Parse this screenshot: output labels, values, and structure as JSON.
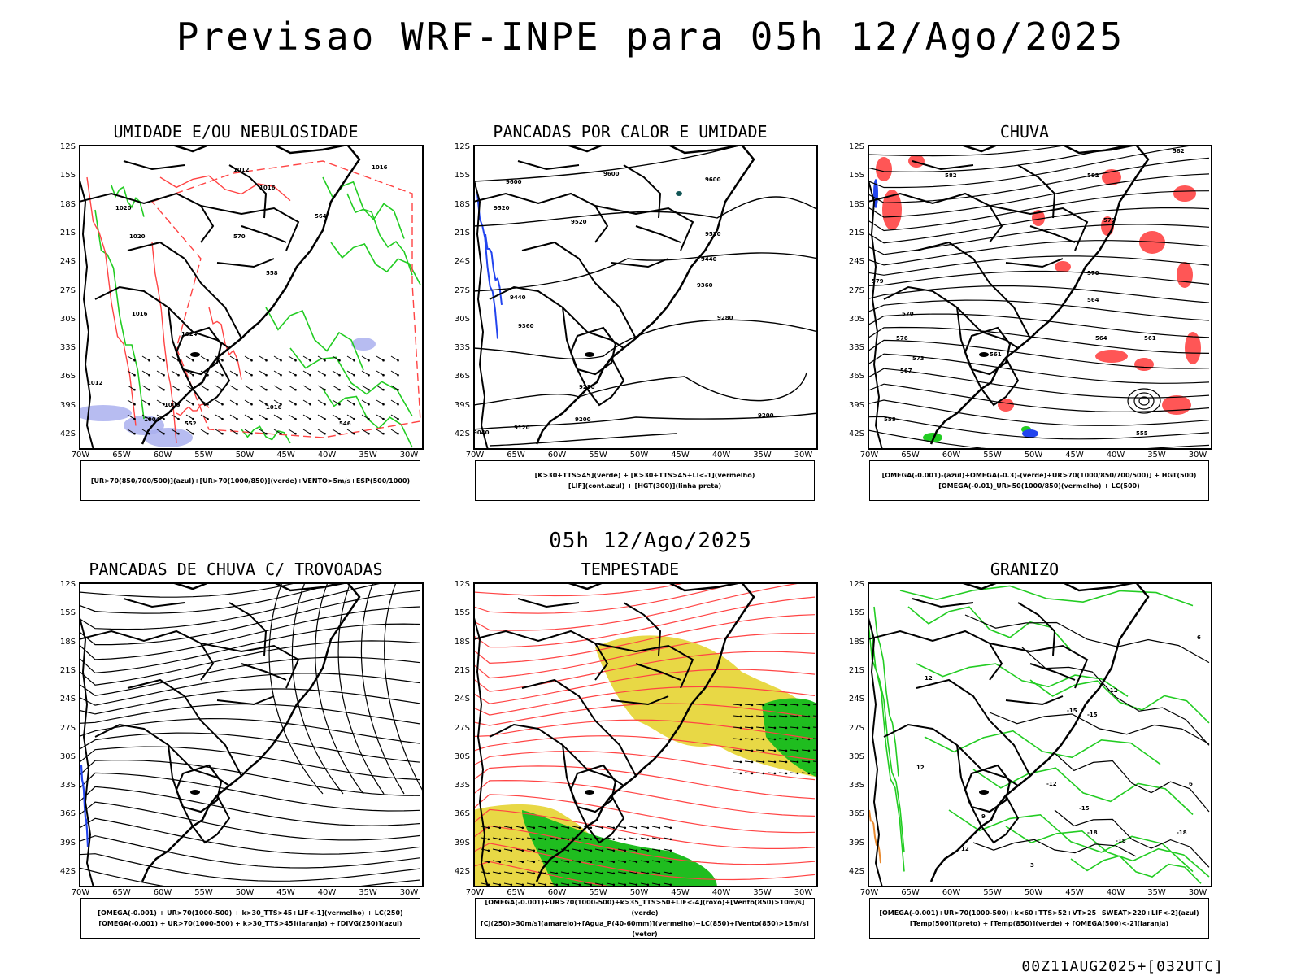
{
  "header": {
    "title": "Previsao WRF-INPE  para 05h 12/Ago/2025"
  },
  "subheader": {
    "date": "05h 12/Ago/2025"
  },
  "footer": {
    "run": "00Z11AUG2025+[032UTC]"
  },
  "axes": {
    "lat_labels": [
      "12S",
      "15S",
      "18S",
      "21S",
      "24S",
      "27S",
      "30S",
      "33S",
      "36S",
      "39S",
      "42S"
    ],
    "lon_labels": [
      "70W",
      "65W",
      "60W",
      "55W",
      "50W",
      "45W",
      "40W",
      "35W",
      "30W"
    ]
  },
  "colors": {
    "blue": "#2244ee",
    "green": "#22cc22",
    "red": "#ff4444",
    "yellow": "#e8d845",
    "orange": "#e88a30",
    "lavender": "#aab0ee"
  },
  "panels": [
    {
      "id": "umidade",
      "title": "UMIDADE E/OU NEBULOSIDADE",
      "legend_lines": [
        "[UR>70(850/700/500)](azul)+[UR>70(1000/850)](verde)+VENTO>5m/s+ESP(500/1000)"
      ],
      "contour_labels": [
        "1012",
        "1016",
        "1016",
        "1020",
        "1020",
        "1024",
        "1016",
        "1012",
        "1008",
        "1004",
        "1016",
        "570",
        "564",
        "558",
        "552",
        "546"
      ]
    },
    {
      "id": "pancadas_calor",
      "title": "PANCADAS POR CALOR E UMIDADE",
      "legend_lines": [
        "[K>30+TTS>45](verde) + [K>30+TTS>45+LI<-1](vermelho)",
        "[LIF](cont.azul) + [HGT(300)](linha preta)"
      ],
      "contour_labels": [
        "9600",
        "9600",
        "9600",
        "9520",
        "9520",
        "9520",
        "9440",
        "9440",
        "9360",
        "9360",
        "9280",
        "9280",
        "9200",
        "9200",
        "9120",
        "9040"
      ]
    },
    {
      "id": "chuva",
      "title": "CHUVA",
      "legend_lines": [
        "[OMEGA(-0.001)-(azul)+OMEGA(-0.3)-(verde)+UR>70(1000/850/700/500)] + HGT(500)",
        "[OMEGA(-0.01)_UR>50(1000/850)(vermelho) + LC(500)"
      ],
      "contour_labels": [
        "582",
        "582",
        "582",
        "579",
        "579",
        "576",
        "573",
        "570",
        "570",
        "567",
        "564",
        "564",
        "561",
        "561",
        "558",
        "555"
      ]
    },
    {
      "id": "trovoadas",
      "title": "PANCADAS DE CHUVA C/ TROVOADAS",
      "legend_lines": [
        "[OMEGA(-0.001) + UR>70(1000-500) + k>30_TTS>45+LIF<-1](vermelho) + LC(250)",
        "[OMEGA(-0.001) + UR>70(1000-500) + k>30_TTS>45](laranja) + [DIVG(250)](azul)"
      ],
      "contour_labels": []
    },
    {
      "id": "tempestade",
      "title": "TEMPESTADE",
      "legend_lines": [
        "[OMEGA(-0.001)+UR>70(1000-500)+k>35_TTS>50+LIF<-4](roxo)+[Vento(850)>10m/s](verde)",
        "[CJ(250)>30m/s](amarelo)+[Agua_P(40-60mm)](vermelho)+LC(850)+[Vento(850)>15m/s](vetor)"
      ],
      "contour_labels": []
    },
    {
      "id": "granizo",
      "title": "GRANIZO",
      "legend_lines": [
        "[OMEGA(-0.001)+UR>70(1000-500)+k<60+TTS>52+VT>25+SWEAT>220+LIF<-2](azul)",
        "[Temp(500)](preto) + [Temp(850)](verde) + [OMEGA(500)<-2](laranja)"
      ],
      "contour_labels": [
        "-12",
        "-12",
        "-15",
        "-15",
        "-15",
        "-18",
        "-18",
        "-18",
        "12",
        "12",
        "12",
        "9",
        "6",
        "6",
        "3"
      ]
    }
  ]
}
